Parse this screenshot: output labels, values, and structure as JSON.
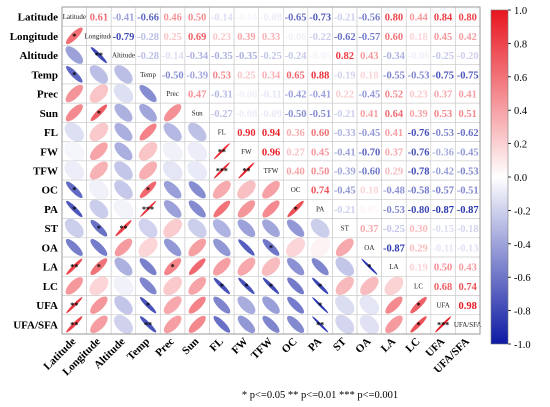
{
  "chart_data": {
    "type": "heatmap",
    "variables": [
      "Latitude",
      "Longitude",
      "Altitude",
      "Temp",
      "Prec",
      "Sun",
      "FL",
      "FW",
      "TFW",
      "OC",
      "PA",
      "ST",
      "OA",
      "LA",
      "LC",
      "UFA",
      "UFA/SFA"
    ],
    "upper_matrix": [
      [
        null,
        0.61,
        -0.41,
        -0.66,
        0.46,
        0.5,
        -0.14,
        -0.04,
        -0.08,
        -0.65,
        -0.73,
        -0.21,
        -0.56,
        0.8,
        0.44,
        0.84,
        0.8
      ],
      [
        null,
        null,
        -0.79,
        -0.28,
        0.25,
        0.69,
        0.23,
        0.39,
        0.33,
        -0.06,
        -0.22,
        -0.62,
        -0.57,
        0.6,
        0.18,
        0.45,
        0.42
      ],
      [
        null,
        null,
        null,
        -0.28,
        -0.14,
        -0.34,
        -0.35,
        -0.35,
        -0.25,
        -0.24,
        -0.05,
        0.82,
        0.43,
        -0.34,
        -0.06,
        -0.25,
        -0.2
      ],
      [
        null,
        null,
        null,
        null,
        -0.5,
        -0.39,
        0.53,
        0.25,
        0.34,
        0.65,
        0.88,
        -0.19,
        0.18,
        -0.55,
        -0.53,
        -0.75,
        -0.75
      ],
      [
        null,
        null,
        null,
        null,
        null,
        0.47,
        -0.31,
        -0.06,
        -0.11,
        -0.42,
        -0.41,
        0.22,
        -0.45,
        0.52,
        0.23,
        0.37,
        0.41
      ],
      [
        null,
        null,
        null,
        null,
        null,
        null,
        -0.27,
        -0.08,
        -0.09,
        -0.5,
        -0.51,
        -0.21,
        0.41,
        0.64,
        0.39,
        0.53,
        0.51
      ],
      [
        null,
        null,
        null,
        null,
        null,
        null,
        null,
        0.9,
        0.94,
        0.36,
        0.6,
        -0.33,
        -0.45,
        0.41,
        -0.76,
        -0.53,
        -0.62
      ],
      [
        null,
        null,
        null,
        null,
        null,
        null,
        null,
        null,
        0.96,
        0.27,
        0.45,
        -0.41,
        -0.7,
        0.37,
        -0.76,
        -0.36,
        -0.45
      ],
      [
        null,
        null,
        null,
        null,
        null,
        null,
        null,
        null,
        null,
        0.4,
        0.5,
        -0.39,
        -0.6,
        0.29,
        -0.78,
        -0.42,
        -0.53
      ],
      [
        null,
        null,
        null,
        null,
        null,
        null,
        null,
        null,
        null,
        null,
        0.74,
        -0.45,
        0.18,
        -0.48,
        -0.58,
        -0.57,
        -0.51
      ],
      [
        null,
        null,
        null,
        null,
        null,
        null,
        null,
        null,
        null,
        null,
        null,
        -0.21,
        0.05,
        -0.53,
        -0.8,
        -0.87,
        -0.87
      ],
      [
        null,
        null,
        null,
        null,
        null,
        null,
        null,
        null,
        null,
        null,
        null,
        null,
        0.37,
        -0.25,
        0.3,
        -0.15,
        -0.18
      ],
      [
        null,
        null,
        null,
        null,
        null,
        null,
        null,
        null,
        null,
        null,
        null,
        null,
        null,
        -0.87,
        0.29,
        -0.11,
        -0.13
      ],
      [
        null,
        null,
        null,
        null,
        null,
        null,
        null,
        null,
        null,
        null,
        null,
        null,
        null,
        null,
        0.19,
        0.5,
        0.43
      ],
      [
        null,
        null,
        null,
        null,
        null,
        null,
        null,
        null,
        null,
        null,
        null,
        null,
        null,
        null,
        null,
        0.68,
        0.74
      ],
      [
        null,
        null,
        null,
        null,
        null,
        null,
        null,
        null,
        null,
        null,
        null,
        null,
        null,
        null,
        null,
        null,
        0.98
      ],
      [
        null,
        null,
        null,
        null,
        null,
        null,
        null,
        null,
        null,
        null,
        null,
        null,
        null,
        null,
        null,
        null,
        null
      ]
    ],
    "lower_significance": [
      [
        "",
        "",
        "",
        "",
        "",
        "",
        "",
        "",
        "",
        "",
        "",
        "",
        "",
        "",
        "",
        "",
        ""
      ],
      [
        "*",
        "",
        "",
        "",
        "",
        "",
        "",
        "",
        "",
        "",
        "",
        "",
        "",
        "",
        "",
        "",
        ""
      ],
      [
        "",
        "**",
        "",
        "",
        "",
        "",
        "",
        "",
        "",
        "",
        "",
        "",
        "",
        "",
        "",
        "",
        ""
      ],
      [
        "*",
        "",
        "",
        "",
        "",
        "",
        "",
        "",
        "",
        "",
        "",
        "",
        "",
        "",
        "",
        "",
        ""
      ],
      [
        "",
        "",
        "",
        "",
        "",
        "",
        "",
        "",
        "",
        "",
        "",
        "",
        "",
        "",
        "",
        "",
        ""
      ],
      [
        "",
        "*",
        "",
        "",
        "",
        "",
        "",
        "",
        "",
        "",
        "",
        "",
        "",
        "",
        "",
        "",
        ""
      ],
      [
        "",
        "",
        "",
        "",
        "",
        "",
        "",
        "",
        "",
        "",
        "",
        "",
        "",
        "",
        "",
        "",
        ""
      ],
      [
        "",
        "",
        "",
        "",
        "",
        "",
        "**",
        "",
        "",
        "",
        "",
        "",
        "",
        "",
        "",
        "",
        ""
      ],
      [
        "",
        "",
        "",
        "",
        "",
        "",
        "***",
        "**",
        "",
        "",
        "",
        "",
        "",
        "",
        "",
        "",
        ""
      ],
      [
        "*",
        "",
        "",
        "*",
        "",
        "",
        "",
        "",
        "",
        "",
        "",
        "",
        "",
        "",
        "",
        "",
        ""
      ],
      [
        "*",
        "",
        "",
        "***",
        "",
        "",
        "",
        "",
        "",
        "*",
        "",
        "",
        "",
        "",
        "",
        "",
        ""
      ],
      [
        "",
        "*",
        "**",
        "",
        "",
        "",
        "",
        "",
        "",
        "",
        "",
        "",
        "",
        "",
        "",
        "",
        ""
      ],
      [
        "",
        "",
        "",
        "",
        "",
        "",
        "",
        "",
        "*",
        "",
        "",
        "",
        "",
        "",
        "",
        "",
        ""
      ],
      [
        "**",
        "*",
        "",
        "",
        "*",
        "",
        "",
        "",
        "",
        "",
        "",
        "",
        "*",
        "",
        "",
        "",
        ""
      ],
      [
        "",
        "",
        "",
        "",
        "",
        "",
        "*",
        "*",
        "*",
        "",
        "*",
        "",
        "",
        "",
        "",
        "",
        ""
      ],
      [
        "**",
        "",
        "",
        "*",
        "",
        "",
        "",
        "",
        "",
        "",
        "*",
        "",
        "",
        "",
        "*",
        "",
        ""
      ],
      [
        "**",
        "",
        "",
        "**",
        "",
        "",
        "",
        "",
        "",
        "",
        "**",
        "",
        "",
        "",
        "*",
        "***",
        ""
      ]
    ],
    "colorbar": {
      "ticks": [
        1.0,
        0.8,
        0.6,
        0.4,
        0.2,
        0.0,
        -0.2,
        -0.4,
        -0.6,
        -0.8,
        -1.0
      ],
      "range": [
        -1,
        1
      ],
      "colors": {
        "positive": "#e8151f",
        "zero": "#ffffff",
        "negative": "#0d1aa3"
      }
    },
    "legend_text": "* p<=0.05   ** p<=0.01   *** p<=0.001"
  }
}
